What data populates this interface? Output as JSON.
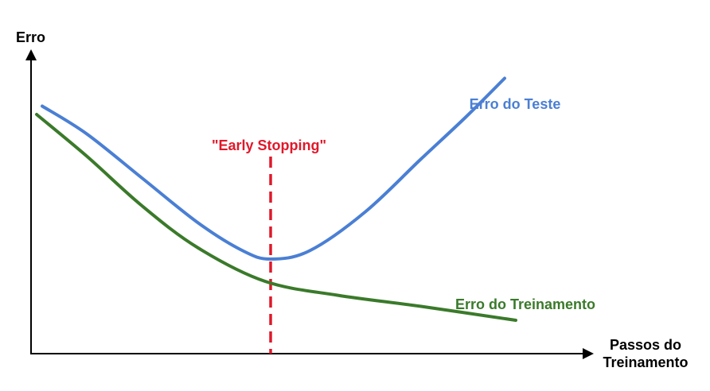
{
  "chart_data": {
    "type": "line",
    "title": "",
    "ylabel": "Erro",
    "xlabel": [
      "Passos do",
      "Treinamento"
    ],
    "xlim": [
      0,
      1
    ],
    "ylim": [
      0,
      1
    ],
    "grid": false,
    "series": [
      {
        "name": "Erro do Teste",
        "color": "#4a7fd4",
        "points": [
          [
            0.02,
            0.89
          ],
          [
            0.1,
            0.79
          ],
          [
            0.2,
            0.63
          ],
          [
            0.3,
            0.47
          ],
          [
            0.38,
            0.37
          ],
          [
            0.43,
            0.34
          ],
          [
            0.5,
            0.37
          ],
          [
            0.6,
            0.51
          ],
          [
            0.7,
            0.7
          ],
          [
            0.78,
            0.85
          ],
          [
            0.85,
            0.99
          ]
        ]
      },
      {
        "name": "Erro do Treinamento",
        "color": "#3a7a2a",
        "points": [
          [
            0.01,
            0.86
          ],
          [
            0.1,
            0.71
          ],
          [
            0.2,
            0.53
          ],
          [
            0.3,
            0.38
          ],
          [
            0.42,
            0.26
          ],
          [
            0.55,
            0.21
          ],
          [
            0.7,
            0.17
          ],
          [
            0.87,
            0.12
          ]
        ]
      }
    ],
    "annotations": [
      {
        "text": "\"Early Stopping\"",
        "x": 0.43,
        "color": "#e0182a",
        "style": "dashed-vertical-line"
      }
    ]
  }
}
